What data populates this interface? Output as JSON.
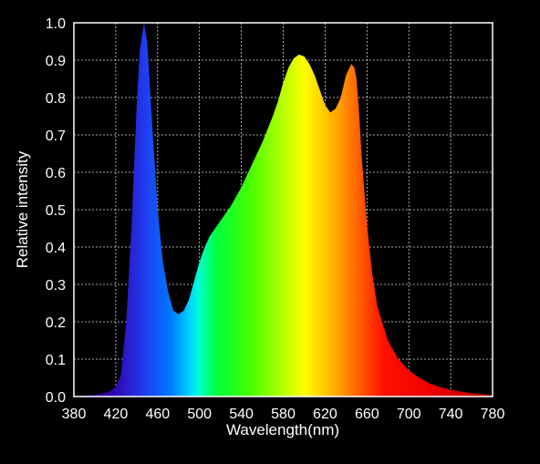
{
  "chart_data": {
    "type": "area",
    "xlabel": "Wavelength(nm)",
    "ylabel": "Relative intensity",
    "xlim": [
      380,
      780
    ],
    "ylim": [
      0,
      1.0
    ],
    "x_ticks": [
      "380",
      "420",
      "460",
      "500",
      "540",
      "580",
      "620",
      "660",
      "700",
      "740",
      "780"
    ],
    "y_ticks": [
      "0.0",
      "0.1",
      "0.2",
      "0.3",
      "0.4",
      "0.5",
      "0.6",
      "0.7",
      "0.8",
      "0.9",
      "1.0"
    ],
    "grid": true,
    "fill": "visible-spectrum gradient",
    "series": [
      {
        "x": [
          380,
          390,
          400,
          410,
          415,
          420,
          425,
          430,
          435,
          440,
          443,
          447,
          450,
          455,
          460,
          465,
          470,
          475,
          480,
          485,
          490,
          495,
          500,
          505,
          510,
          520,
          530,
          540,
          550,
          560,
          570,
          575,
          580,
          585,
          590,
          595,
          600,
          605,
          610,
          615,
          620,
          625,
          630,
          635,
          640,
          645,
          648,
          650,
          652,
          655,
          660,
          665,
          670,
          680,
          690,
          700,
          710,
          720,
          730,
          740,
          750,
          760,
          770,
          780
        ],
        "y": [
          0.0,
          0.003,
          0.005,
          0.01,
          0.015,
          0.025,
          0.06,
          0.2,
          0.45,
          0.78,
          0.93,
          1.0,
          0.95,
          0.72,
          0.5,
          0.36,
          0.28,
          0.23,
          0.22,
          0.23,
          0.26,
          0.31,
          0.36,
          0.4,
          0.43,
          0.47,
          0.51,
          0.56,
          0.62,
          0.68,
          0.75,
          0.79,
          0.84,
          0.88,
          0.905,
          0.915,
          0.91,
          0.89,
          0.86,
          0.82,
          0.78,
          0.76,
          0.77,
          0.8,
          0.86,
          0.89,
          0.88,
          0.85,
          0.78,
          0.64,
          0.46,
          0.33,
          0.24,
          0.15,
          0.1,
          0.07,
          0.05,
          0.035,
          0.025,
          0.018,
          0.013,
          0.009,
          0.006,
          0.004
        ]
      }
    ]
  }
}
